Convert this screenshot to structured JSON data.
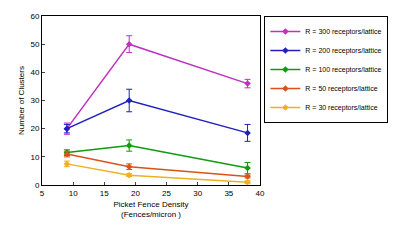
{
  "chart_data": {
    "type": "line",
    "x_label": "Picket Fence Density\n(Fences/micron )",
    "y_label": "Number of Clusters",
    "x": [
      9,
      19,
      38
    ],
    "series": [
      {
        "name": "R = 300 receptors/lattice",
        "color": "#c030c0",
        "values": [
          20,
          50,
          36
        ],
        "errors": [
          2,
          3,
          1.5
        ]
      },
      {
        "name": "R = 200 receptors/lattice",
        "color": "#2020c0",
        "values": [
          20,
          30,
          18.5
        ],
        "errors": [
          1.5,
          4,
          3
        ]
      },
      {
        "name": "R = 100 receptors/lattice",
        "color": "#109a10",
        "values": [
          11.5,
          14,
          6
        ],
        "errors": [
          1,
          2,
          2
        ]
      },
      {
        "name": "R = 50 receptors/lattice",
        "color": "#d95319",
        "values": [
          11,
          6.5,
          3
        ],
        "errors": [
          1,
          1,
          0.5
        ]
      },
      {
        "name": "R = 30 receptors/lattice",
        "color": "#edb120",
        "values": [
          7.5,
          3.5,
          1
        ],
        "errors": [
          1,
          0.5,
          0.5
        ]
      }
    ],
    "xlim": [
      5,
      40
    ],
    "xticks": [
      5,
      10,
      15,
      20,
      25,
      30,
      35,
      40
    ],
    "ylim": [
      0,
      60
    ],
    "yticks": [
      0,
      10,
      20,
      30,
      40,
      50,
      60
    ],
    "grid": false,
    "legend": "outside right top",
    "marker": "diamond",
    "line_style": "solid"
  }
}
